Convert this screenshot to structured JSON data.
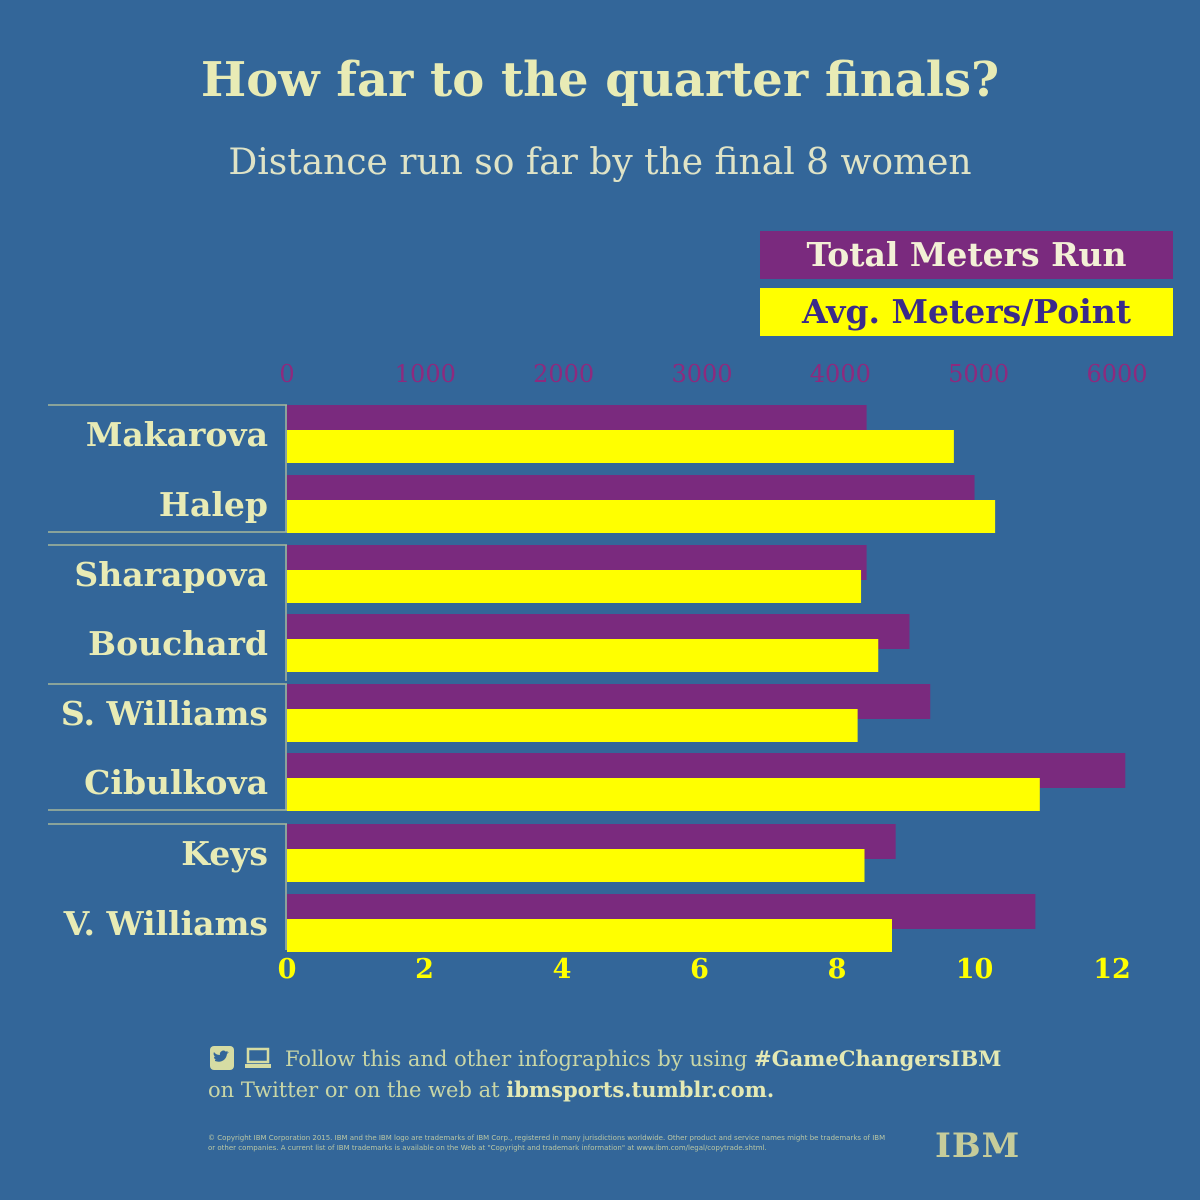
{
  "title": "How far to the quarter finals?",
  "subtitle": "Distance run so far by the final 8 women",
  "legend": {
    "total": "Total Meters Run",
    "avg": "Avg. Meters/Point"
  },
  "colors": {
    "background": "#336699",
    "total": "#7a2a7e",
    "avg": "#ffff00",
    "top_axis": "#8e2a7e",
    "bottom_axis": "#ffff00",
    "label": "#e8ebb5"
  },
  "chart_data": {
    "type": "bar",
    "orientation": "horizontal",
    "categories": [
      "Makarova",
      "Halep",
      "Sharapova",
      "Bouchard",
      "S. Williams",
      "Cibulkova",
      "Keys",
      "V. Williams"
    ],
    "series": [
      {
        "name": "Total Meters Run",
        "axis": "top",
        "values": [
          4190,
          4970,
          4190,
          4500,
          4650,
          6060,
          4400,
          5410
        ]
      },
      {
        "name": "Avg. Meters/Point",
        "axis": "bottom",
        "values": [
          9.7,
          10.3,
          8.35,
          8.6,
          8.3,
          10.95,
          8.4,
          8.8
        ]
      }
    ],
    "top_axis": {
      "ticks": [
        0,
        1000,
        2000,
        3000,
        4000,
        5000,
        6000
      ],
      "range": [
        0,
        6000
      ]
    },
    "bottom_axis": {
      "ticks": [
        0,
        2,
        4,
        6,
        8,
        10,
        12
      ],
      "range": [
        0,
        12
      ]
    },
    "groups": [
      [
        "Makarova",
        "Halep"
      ],
      [
        "Sharapova",
        "Bouchard"
      ],
      [
        "S. Williams",
        "Cibulkova"
      ],
      [
        "Keys",
        "V. Williams"
      ]
    ]
  },
  "footer": {
    "line1_prefix": "Follow this and other infographics by using ",
    "line1_hashtag": "#GameChangersIBM",
    "line2_prefix": "on Twitter or on the web at ",
    "line2_link": "ibmsports.tumblr.com.",
    "fine_print": "© Copyright IBM Corporation 2015. IBM and the IBM logo are trademarks of IBM Corp., registered in many jurisdictions worldwide. Other product and service names might be trademarks of IBM or other companies. A current list of IBM trademarks is available on the Web at \"Copyright and trademark information\" at www.ibm.com/legal/copytrade.shtml.",
    "logo": "IBM"
  }
}
